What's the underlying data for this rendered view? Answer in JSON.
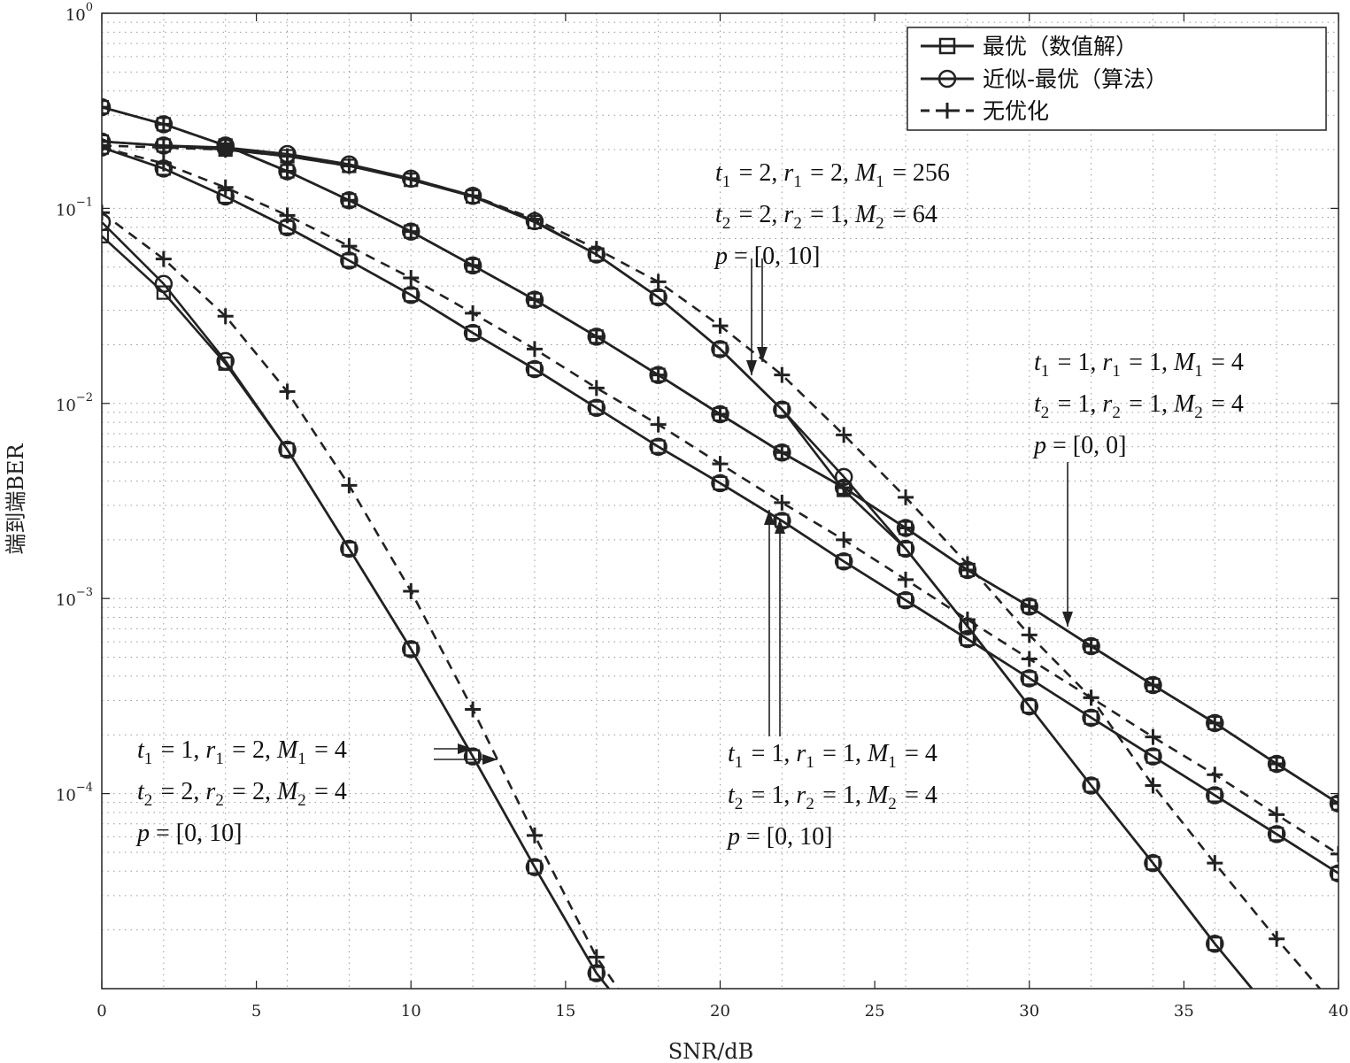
{
  "chart_data": {
    "type": "line",
    "xlabel": "SNR/dB",
    "ylabel": "端到端BER",
    "xlim": [
      0,
      40
    ],
    "ylim": [
      1e-05,
      1
    ],
    "yscale": "log",
    "grid": true,
    "legend_position": "top-right",
    "x_ticks": [
      "0",
      "5",
      "10",
      "15",
      "20",
      "25",
      "30",
      "35",
      "40"
    ],
    "y_ticks": [
      {
        "base": "10",
        "exp": "0",
        "value": 1
      },
      {
        "base": "10",
        "exp": "−1",
        "value": 0.1
      },
      {
        "base": "10",
        "exp": "−2",
        "value": 0.01
      },
      {
        "base": "10",
        "exp": "−3",
        "value": 0.001
      },
      {
        "base": "10",
        "exp": "−4",
        "value": 0.0001
      }
    ],
    "legend": [
      {
        "label": "最优（数值解）",
        "marker": "square",
        "dash": "solid"
      },
      {
        "label": "近似-最优（算法）",
        "marker": "circle",
        "dash": "solid"
      },
      {
        "label": "无优化",
        "marker": "plus",
        "dash": "dashed"
      }
    ],
    "groups": [
      {
        "annotation": [
          "t1 = 2, r1 = 2, M1 = 256",
          "t2 = 2, r2 = 1, M2 = 64",
          "p = [0, 10]"
        ],
        "optimal": [
          [
            0,
            0.22
          ],
          [
            2,
            0.21
          ],
          [
            4,
            0.2
          ],
          [
            6,
            0.185
          ],
          [
            8,
            0.165
          ],
          [
            10,
            0.14
          ],
          [
            12,
            0.115
          ],
          [
            14,
            0.085
          ],
          [
            16,
            0.058
          ],
          [
            18,
            0.035
          ],
          [
            20,
            0.019
          ],
          [
            22,
            0.0093
          ],
          [
            24,
            0.0036
          ],
          [
            26,
            0.0018
          ],
          [
            28,
            0.00072
          ],
          [
            30,
            0.00028
          ],
          [
            32,
            0.00011
          ],
          [
            34,
            4.4e-05
          ],
          [
            36,
            1.7e-05
          ],
          [
            37.2,
            1e-05
          ]
        ],
        "approx": [
          [
            0,
            0.22
          ],
          [
            2,
            0.21
          ],
          [
            4,
            0.205
          ],
          [
            6,
            0.19
          ],
          [
            8,
            0.168
          ],
          [
            10,
            0.142
          ],
          [
            12,
            0.116
          ],
          [
            14,
            0.086
          ],
          [
            16,
            0.058
          ],
          [
            18,
            0.035
          ],
          [
            20,
            0.019
          ],
          [
            22,
            0.0093
          ],
          [
            24,
            0.0042
          ],
          [
            26,
            0.0018
          ],
          [
            28,
            0.00072
          ],
          [
            30,
            0.00028
          ],
          [
            32,
            0.00011
          ],
          [
            34,
            4.4e-05
          ],
          [
            36,
            1.7e-05
          ],
          [
            37.2,
            1e-05
          ]
        ],
        "none": [
          [
            0,
            0.21
          ],
          [
            2,
            0.205
          ],
          [
            4,
            0.2
          ],
          [
            6,
            0.185
          ],
          [
            8,
            0.165
          ],
          [
            10,
            0.142
          ],
          [
            12,
            0.116
          ],
          [
            14,
            0.088
          ],
          [
            16,
            0.062
          ],
          [
            18,
            0.042
          ],
          [
            20,
            0.025
          ],
          [
            22,
            0.014
          ],
          [
            24,
            0.0069
          ],
          [
            26,
            0.0033
          ],
          [
            28,
            0.0015
          ],
          [
            30,
            0.00065
          ],
          [
            32,
            0.00031
          ],
          [
            34,
            0.00011
          ],
          [
            36,
            4.4e-05
          ],
          [
            38,
            1.8e-05
          ],
          [
            39.4,
            1e-05
          ]
        ]
      },
      {
        "annotation": [
          "t1 = 1, r1 = 1, M1 = 4",
          "t2 = 1, r2 = 1, M2 = 4",
          "p = [0, 0]"
        ],
        "optimal": [
          [
            0,
            0.33
          ],
          [
            2,
            0.27
          ],
          [
            4,
            0.21
          ],
          [
            6,
            0.155
          ],
          [
            8,
            0.11
          ],
          [
            10,
            0.076
          ],
          [
            12,
            0.051
          ],
          [
            14,
            0.034
          ],
          [
            16,
            0.022
          ],
          [
            18,
            0.014
          ],
          [
            20,
            0.0088
          ],
          [
            22,
            0.0056
          ],
          [
            24,
            0.0037
          ],
          [
            26,
            0.0023
          ],
          [
            28,
            0.0014
          ],
          [
            30,
            0.00091
          ],
          [
            32,
            0.00057
          ],
          [
            34,
            0.00036
          ],
          [
            36,
            0.00023
          ],
          [
            38,
            0.000142
          ],
          [
            40,
            8.9e-05
          ]
        ],
        "approx": [
          [
            0,
            0.33
          ],
          [
            2,
            0.27
          ],
          [
            4,
            0.21
          ],
          [
            6,
            0.155
          ],
          [
            8,
            0.11
          ],
          [
            10,
            0.076
          ],
          [
            12,
            0.051
          ],
          [
            14,
            0.034
          ],
          [
            16,
            0.022
          ],
          [
            18,
            0.014
          ],
          [
            20,
            0.0088
          ],
          [
            22,
            0.0056
          ],
          [
            24,
            0.0037
          ],
          [
            26,
            0.0023
          ],
          [
            28,
            0.0014
          ],
          [
            30,
            0.00091
          ],
          [
            32,
            0.00057
          ],
          [
            34,
            0.00036
          ],
          [
            36,
            0.00023
          ],
          [
            38,
            0.000142
          ],
          [
            40,
            8.9e-05
          ]
        ],
        "none": [
          [
            0,
            0.33
          ],
          [
            2,
            0.27
          ],
          [
            4,
            0.21
          ],
          [
            6,
            0.155
          ],
          [
            8,
            0.11
          ],
          [
            10,
            0.076
          ],
          [
            12,
            0.051
          ],
          [
            14,
            0.034
          ],
          [
            16,
            0.022
          ],
          [
            18,
            0.014
          ],
          [
            20,
            0.0088
          ],
          [
            22,
            0.0056
          ],
          [
            24,
            0.0037
          ],
          [
            26,
            0.0023
          ],
          [
            28,
            0.0014
          ],
          [
            30,
            0.00091
          ],
          [
            32,
            0.00057
          ],
          [
            34,
            0.00036
          ],
          [
            36,
            0.00023
          ],
          [
            38,
            0.000142
          ],
          [
            40,
            8.9e-05
          ]
        ]
      },
      {
        "annotation": [
          "t1 = 1, r1 = 1, M1 = 4",
          "t2 = 1, r2 = 1, M2 = 4",
          "p = [0, 10]"
        ],
        "optimal": [
          [
            0,
            0.205
          ],
          [
            2,
            0.16
          ],
          [
            4,
            0.115
          ],
          [
            6,
            0.08
          ],
          [
            8,
            0.054
          ],
          [
            10,
            0.036
          ],
          [
            12,
            0.023
          ],
          [
            14,
            0.015
          ],
          [
            16,
            0.0095
          ],
          [
            18,
            0.006
          ],
          [
            20,
            0.0039
          ],
          [
            22,
            0.0025
          ],
          [
            24,
            0.00155
          ],
          [
            26,
            0.00098
          ],
          [
            28,
            0.00062
          ],
          [
            30,
            0.00039
          ],
          [
            32,
            0.000245
          ],
          [
            34,
            0.000155
          ],
          [
            36,
            9.8e-05
          ],
          [
            38,
            6.2e-05
          ],
          [
            40,
            3.9e-05
          ]
        ],
        "approx": [
          [
            0,
            0.205
          ],
          [
            2,
            0.16
          ],
          [
            4,
            0.115
          ],
          [
            6,
            0.08
          ],
          [
            8,
            0.054
          ],
          [
            10,
            0.036
          ],
          [
            12,
            0.023
          ],
          [
            14,
            0.015
          ],
          [
            16,
            0.0095
          ],
          [
            18,
            0.006
          ],
          [
            20,
            0.0039
          ],
          [
            22,
            0.0025
          ],
          [
            24,
            0.00155
          ],
          [
            26,
            0.00098
          ],
          [
            28,
            0.00062
          ],
          [
            30,
            0.00039
          ],
          [
            32,
            0.000245
          ],
          [
            34,
            0.000155
          ],
          [
            36,
            9.8e-05
          ],
          [
            38,
            6.2e-05
          ],
          [
            40,
            3.9e-05
          ]
        ],
        "none": [
          [
            0,
            0.205
          ],
          [
            2,
            0.17
          ],
          [
            4,
            0.128
          ],
          [
            6,
            0.092
          ],
          [
            8,
            0.064
          ],
          [
            10,
            0.044
          ],
          [
            12,
            0.029
          ],
          [
            14,
            0.019
          ],
          [
            16,
            0.012
          ],
          [
            18,
            0.0078
          ],
          [
            20,
            0.0049
          ],
          [
            22,
            0.0031
          ],
          [
            24,
            0.002
          ],
          [
            26,
            0.00125
          ],
          [
            28,
            0.00078
          ],
          [
            30,
            0.00049
          ],
          [
            32,
            0.00031
          ],
          [
            34,
            0.000195
          ],
          [
            36,
            0.000125
          ],
          [
            38,
            7.8e-05
          ],
          [
            40,
            4.9e-05
          ]
        ]
      },
      {
        "annotation": [
          "t1 = 1, r1 = 2, M1 = 4",
          "t2 = 2, r2 = 2, M2 = 4",
          "p = [0, 10]"
        ],
        "optimal": [
          [
            0,
            0.072
          ],
          [
            2,
            0.037
          ],
          [
            4,
            0.016
          ],
          [
            6,
            0.0058
          ],
          [
            8,
            0.0018
          ],
          [
            10,
            0.00055
          ],
          [
            12,
            0.000155
          ],
          [
            14,
            4.2e-05
          ],
          [
            16,
            1.2e-05
          ],
          [
            16.4,
            1e-05
          ]
        ],
        "approx": [
          [
            0,
            0.085
          ],
          [
            2,
            0.041
          ],
          [
            4,
            0.0165
          ],
          [
            6,
            0.0058
          ],
          [
            8,
            0.0018
          ],
          [
            10,
            0.00055
          ],
          [
            12,
            0.000155
          ],
          [
            14,
            4.2e-05
          ],
          [
            16,
            1.2e-05
          ],
          [
            16.4,
            1e-05
          ]
        ],
        "none": [
          [
            0,
            0.095
          ],
          [
            2,
            0.055
          ],
          [
            4,
            0.028
          ],
          [
            6,
            0.0115
          ],
          [
            8,
            0.0038
          ],
          [
            10,
            0.00109
          ],
          [
            12,
            0.00027
          ],
          [
            14,
            6.1e-05
          ],
          [
            16,
            1.45e-05
          ],
          [
            16.7,
            1e-05
          ]
        ]
      }
    ]
  }
}
